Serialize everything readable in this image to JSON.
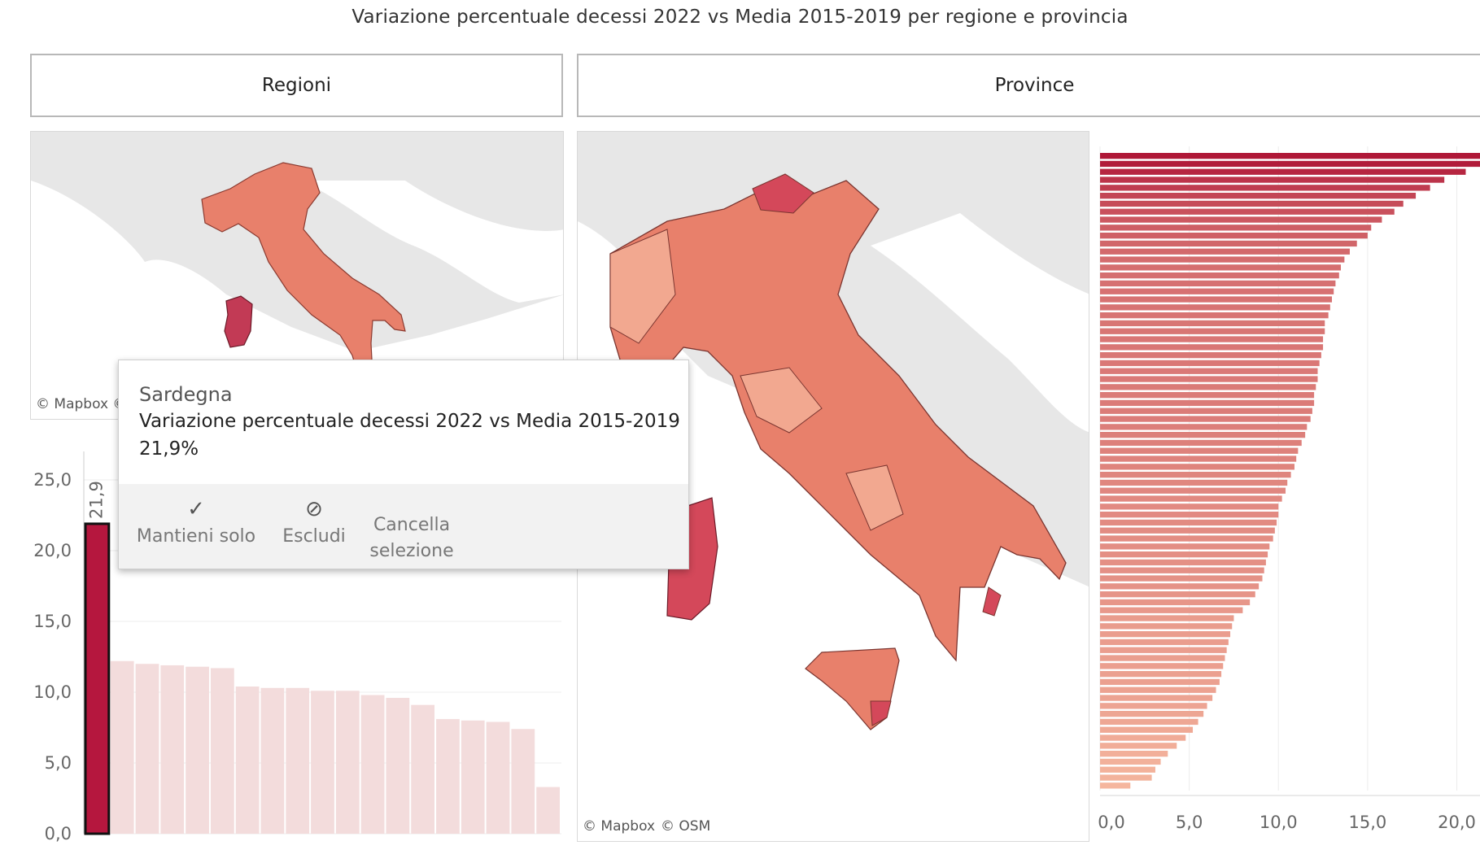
{
  "title": "Variazione percentuale decessi 2022 vs Media 2015-2019 per regione e provincia",
  "tabs": {
    "regioni": "Regioni",
    "province": "Province"
  },
  "attribution": {
    "left_map": "© Mapbox ©",
    "right_mapbox": "© Mapbox",
    "right_osm": "© OSM"
  },
  "colors": {
    "highlight": "#b5173e",
    "faded_bar": "#f3dcdc",
    "map_base": "#e7e7e7",
    "region_fill": "#e8806b",
    "province_light": "#f2a890",
    "province_dark": "#d4485a"
  },
  "tooltip": {
    "region": "Sardegna",
    "measure": "Variazione percentuale decessi 2022 vs Media 2015-2019",
    "value": "21,9%",
    "actions": [
      {
        "icon": "check-icon",
        "label": "Mantieni solo"
      },
      {
        "icon": "exclude-icon",
        "label": "Escludi"
      },
      {
        "icon": "none",
        "label": "Cancella selezione"
      }
    ]
  },
  "chart_data": [
    {
      "type": "bar",
      "orientation": "vertical",
      "title": "",
      "ylim": [
        0,
        25
      ],
      "yticks": [
        "0,0",
        "5,0",
        "10,0",
        "15,0",
        "20,0",
        "25,0"
      ],
      "highlight_label": "21,9",
      "values": [
        21.9,
        12.2,
        12.0,
        11.9,
        11.8,
        11.7,
        10.4,
        10.3,
        10.3,
        10.1,
        10.1,
        9.8,
        9.6,
        9.1,
        8.1,
        8.0,
        7.9,
        7.4,
        3.3
      ]
    },
    {
      "type": "bar",
      "orientation": "horizontal",
      "title": "",
      "xlim": [
        0,
        21.3
      ],
      "xticks": [
        "0,0",
        "5,0",
        "10,0",
        "15,0",
        "20,0"
      ],
      "values": [
        21.8,
        21.4,
        20.5,
        19.3,
        18.5,
        17.7,
        17.0,
        16.5,
        15.8,
        15.2,
        15.0,
        14.4,
        14.0,
        13.7,
        13.5,
        13.4,
        13.2,
        13.1,
        13.0,
        12.9,
        12.8,
        12.6,
        12.6,
        12.5,
        12.5,
        12.4,
        12.3,
        12.2,
        12.2,
        12.1,
        12.0,
        12.0,
        11.9,
        11.8,
        11.6,
        11.5,
        11.3,
        11.1,
        11.0,
        10.9,
        10.7,
        10.5,
        10.4,
        10.2,
        10.0,
        10.0,
        9.9,
        9.8,
        9.7,
        9.5,
        9.4,
        9.3,
        9.2,
        9.1,
        8.9,
        8.7,
        8.4,
        8.0,
        7.5,
        7.4,
        7.3,
        7.2,
        7.1,
        7.0,
        6.9,
        6.8,
        6.7,
        6.5,
        6.3,
        6.0,
        5.8,
        5.5,
        5.2,
        4.8,
        4.3,
        3.8,
        3.4,
        3.1,
        2.9,
        1.7
      ]
    }
  ]
}
